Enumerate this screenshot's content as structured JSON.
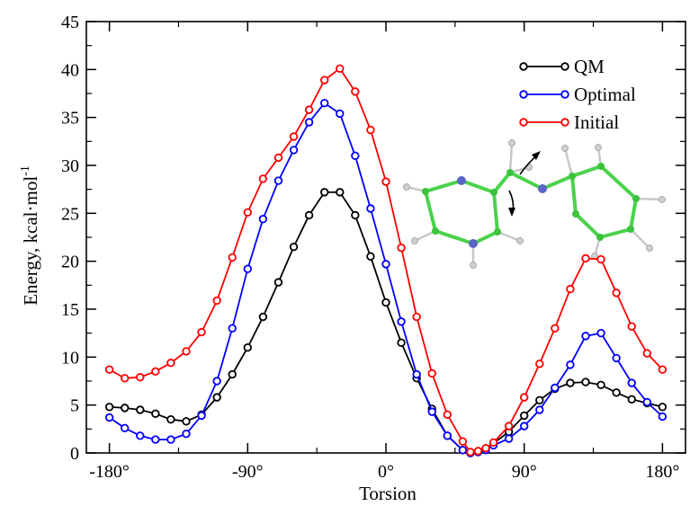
{
  "chart_data": {
    "type": "line",
    "title": "",
    "xlabel": "Torsion",
    "ylabel": "Energy, kcal·mol",
    "ylabel_superscript": "-1",
    "xlim": [
      -195,
      195
    ],
    "ylim": [
      0,
      45
    ],
    "x_ticks": [
      -180,
      -90,
      0,
      90,
      180
    ],
    "x_tick_labels": [
      "-180°",
      "-90°",
      "0°",
      "90°",
      "180°"
    ],
    "y_ticks": [
      0,
      5,
      10,
      15,
      20,
      25,
      30,
      35,
      40,
      45
    ],
    "y_tick_labels": [
      "0",
      "5",
      "10",
      "15",
      "20",
      "25",
      "30",
      "35",
      "40",
      "45"
    ],
    "grid": false,
    "legend_position": "top-right",
    "x": [
      -180,
      -170,
      -160,
      -150,
      -140,
      -130,
      -120,
      -110,
      -100,
      -90,
      -80,
      -70,
      -60,
      -50,
      -40,
      -30,
      -20,
      -10,
      0,
      10,
      20,
      30,
      40,
      50,
      55,
      60,
      65,
      70,
      80,
      90,
      100,
      110,
      120,
      130,
      140,
      150,
      160,
      170,
      180
    ],
    "series": [
      {
        "name": "QM",
        "color": "#000000",
        "values": [
          4.8,
          4.7,
          4.5,
          4.1,
          3.5,
          3.3,
          4.0,
          5.8,
          8.2,
          11.0,
          14.2,
          17.8,
          21.5,
          24.8,
          27.2,
          27.2,
          24.8,
          20.5,
          15.7,
          11.5,
          7.8,
          4.6,
          1.8,
          0.3,
          0.0,
          0.1,
          0.4,
          1.0,
          2.2,
          3.9,
          5.5,
          6.7,
          7.3,
          7.4,
          7.1,
          6.3,
          5.6,
          5.2,
          4.8
        ]
      },
      {
        "name": "Optimal",
        "color": "#0000ff",
        "values": [
          3.7,
          2.6,
          1.8,
          1.4,
          1.4,
          2.0,
          3.9,
          7.5,
          13.0,
          19.2,
          24.4,
          28.4,
          31.6,
          34.5,
          36.5,
          35.4,
          31.0,
          25.5,
          19.7,
          13.7,
          8.2,
          4.3,
          1.8,
          0.3,
          0.0,
          0.1,
          0.3,
          0.8,
          1.5,
          2.8,
          4.5,
          6.8,
          9.2,
          12.2,
          12.5,
          9.9,
          7.3,
          5.3,
          3.8
        ]
      },
      {
        "name": "Initial",
        "color": "#ff0000",
        "values": [
          8.7,
          7.8,
          7.9,
          8.5,
          9.4,
          10.6,
          12.6,
          15.9,
          20.4,
          25.1,
          28.6,
          30.8,
          33.0,
          35.8,
          38.9,
          40.1,
          37.7,
          33.7,
          28.3,
          21.4,
          14.2,
          8.3,
          4.0,
          1.2,
          0.1,
          0.2,
          0.5,
          1.1,
          2.8,
          5.8,
          9.3,
          13.0,
          17.1,
          20.3,
          20.2,
          16.7,
          13.2,
          10.4,
          8.7
        ]
      }
    ]
  }
}
